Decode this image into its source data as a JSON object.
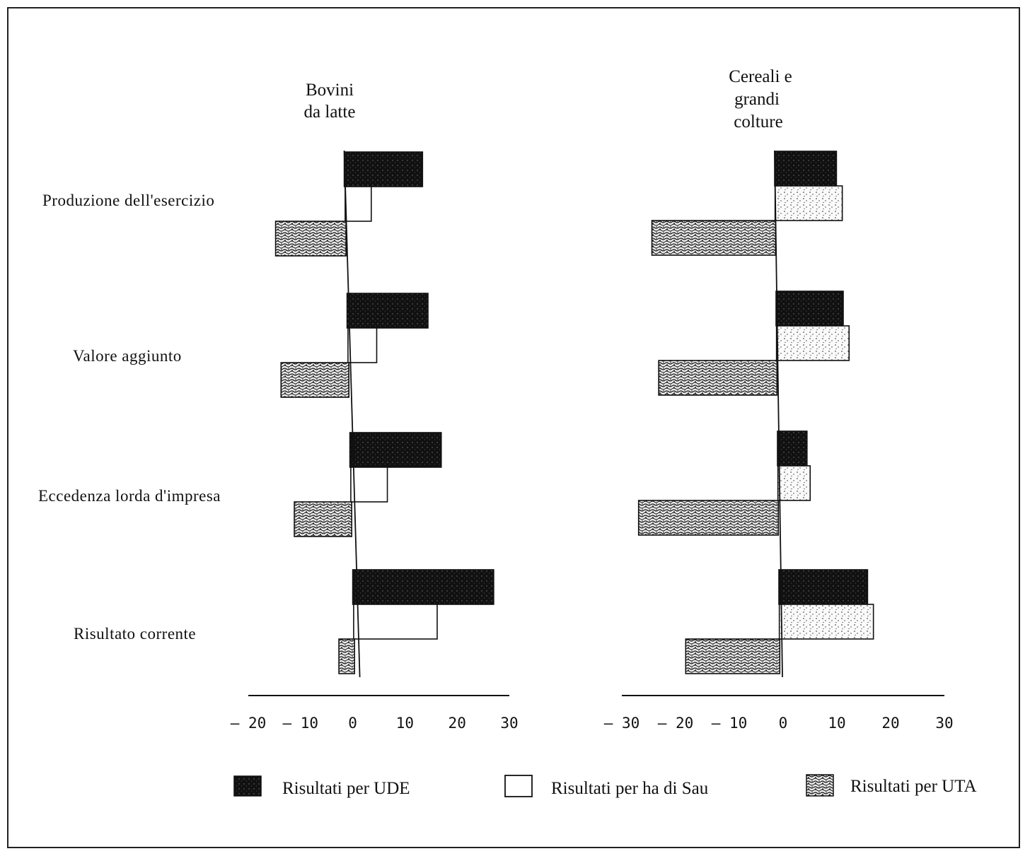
{
  "chart_data": [
    {
      "type": "bar",
      "orientation": "horizontal",
      "title_lines": [
        "Bovini",
        "da latte"
      ],
      "categories": [
        "Produzione dell'esercizio",
        "Valore aggiunto",
        "Eccedenza lorda d'impresa",
        "Risultato corrente"
      ],
      "series": [
        {
          "name": "Risultati per UDE",
          "values": [
            15,
            15.5,
            17.5,
            27
          ]
        },
        {
          "name": "Risultati per ha di Sau",
          "values": [
            5,
            5.5,
            7,
            16
          ]
        },
        {
          "name": "Risultati per UTA",
          "values": [
            -13.5,
            -13,
            -11,
            -3
          ]
        }
      ],
      "xlim": [
        -20,
        30
      ],
      "xticks": [
        "– 20",
        "– 10",
        "0",
        "10",
        "20",
        "30"
      ],
      "xtick_values": [
        -20,
        -10,
        0,
        10,
        20,
        30
      ]
    },
    {
      "type": "bar",
      "orientation": "horizontal",
      "title_lines": [
        "Cereali e",
        "grandi",
        "colture"
      ],
      "categories": [
        "Produzione dell'esercizio",
        "Valore aggiunto",
        "Eccedenza lorda d'impresa",
        "Risultato corrente"
      ],
      "series": [
        {
          "name": "Risultati per UDE",
          "values": [
            11.5,
            12.5,
            5.5,
            16.5
          ]
        },
        {
          "name": "Risultati per ha di Sau",
          "values": [
            12.5,
            13.5,
            6,
            17.5
          ]
        },
        {
          "name": "Risultati per UTA",
          "values": [
            -23,
            -22,
            -26,
            -17.5
          ]
        }
      ],
      "xlim": [
        -30,
        30
      ],
      "xticks": [
        "– 30",
        "– 20",
        "– 10",
        "0",
        "10",
        "20",
        "30"
      ],
      "xtick_values": [
        -30,
        -20,
        -10,
        0,
        10,
        20,
        30
      ]
    }
  ],
  "legend": [
    {
      "label": "Risultati per UDE",
      "pattern": "dark"
    },
    {
      "label": "Risultati per ha di Sau",
      "pattern": "white"
    },
    {
      "label": "Risultati per UTA",
      "pattern": "speckled"
    }
  ],
  "colors": {
    "ink": "#111111",
    "background": "#ffffff"
  }
}
